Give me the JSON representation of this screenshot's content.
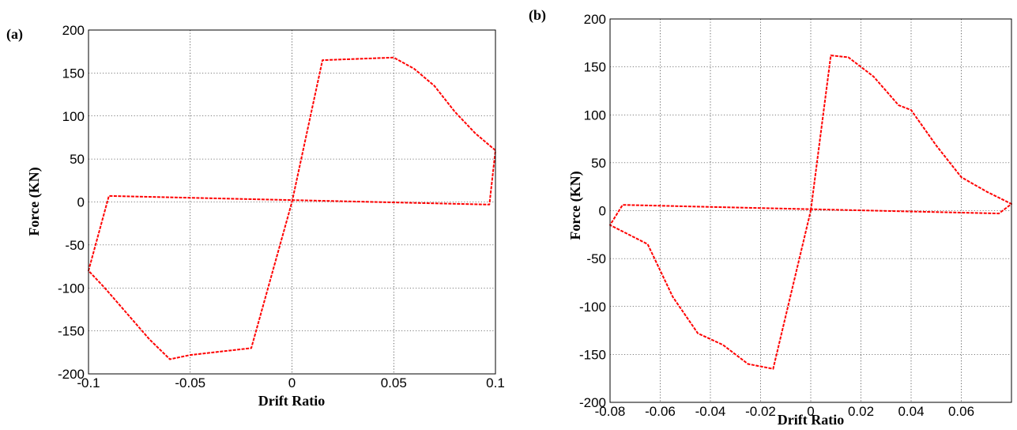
{
  "chart_data": [
    {
      "type": "line",
      "panel_label": "(a)",
      "xlabel": "Drift Ratio",
      "ylabel": "Force (KN)",
      "xlim": [
        -0.1,
        0.1
      ],
      "ylim": [
        -200,
        200
      ],
      "xticks": [
        -0.1,
        -0.05,
        0,
        0.05,
        0.1
      ],
      "xtick_labels": [
        "-0.1",
        "-0.05",
        "0",
        "0.05",
        "0.1"
      ],
      "yticks": [
        -200,
        -150,
        -100,
        -50,
        0,
        50,
        100,
        150,
        200
      ],
      "ytick_labels": [
        "-200",
        "-150",
        "-100",
        "-50",
        "0",
        "50",
        "100",
        "150",
        "200"
      ],
      "grid": true,
      "color": "#ff0000",
      "series": [
        {
          "x": [
            0,
            0.015,
            0.05,
            0.06,
            0.07,
            0.08,
            0.09,
            0.1,
            0.097,
            -0.09,
            -0.1,
            -0.092,
            -0.07,
            -0.06,
            -0.05,
            -0.02,
            0
          ],
          "y": [
            0,
            165,
            168,
            155,
            135,
            105,
            80,
            60,
            -3,
            7,
            -80,
            -100,
            -160,
            -183,
            -178,
            -170,
            0
          ]
        }
      ]
    },
    {
      "type": "line",
      "panel_label": "(b)",
      "xlabel": "Drift Ratio",
      "ylabel": "Force (KN)",
      "xlim": [
        -0.08,
        0.08
      ],
      "ylim": [
        -200,
        200
      ],
      "xticks": [
        -0.08,
        -0.06,
        -0.04,
        -0.02,
        0,
        0.02,
        0.04,
        0.06
      ],
      "xtick_labels": [
        "-0.08",
        "-0.06",
        "-0.04",
        "-0.02",
        "0",
        "0.02",
        "0.04",
        "0.06"
      ],
      "yticks": [
        -200,
        -150,
        -100,
        -50,
        0,
        50,
        100,
        150,
        200
      ],
      "ytick_labels": [
        "-200",
        "-150",
        "-100",
        "-50",
        "0",
        "50",
        "100",
        "150",
        "200"
      ],
      "grid": true,
      "color": "#ff0000",
      "series": [
        {
          "x": [
            0,
            0.008,
            0.015,
            0.02,
            0.025,
            0.03,
            0.035,
            0.04,
            0.05,
            0.06,
            0.07,
            0.08,
            0.075,
            -0.075,
            -0.08,
            -0.065,
            -0.055,
            -0.045,
            -0.035,
            -0.025,
            -0.015,
            0
          ],
          "y": [
            0,
            162,
            160,
            150,
            140,
            125,
            110,
            105,
            68,
            35,
            20,
            7,
            -3,
            6,
            -15,
            -35,
            -90,
            -128,
            -140,
            -160,
            -165,
            0
          ]
        }
      ]
    }
  ]
}
